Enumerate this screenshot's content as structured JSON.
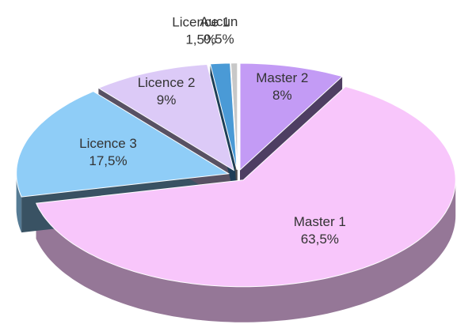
{
  "chart_data": {
    "type": "pie",
    "categories": [
      "Master 2",
      "Master 1",
      "Licence 3",
      "Licence 2",
      "Licence 1",
      "Aucun"
    ],
    "values": [
      8,
      63.5,
      17.5,
      9,
      1.5,
      0.5
    ],
    "value_labels": [
      "8%",
      "63,5%",
      "17,5%",
      "9%",
      "1,5%",
      "0,5%"
    ],
    "colors": [
      "#c39bf5",
      "#f8c6fb",
      "#8fcdf7",
      "#dccaf7",
      "#4a9ad6",
      "#c8c8c8"
    ]
  }
}
